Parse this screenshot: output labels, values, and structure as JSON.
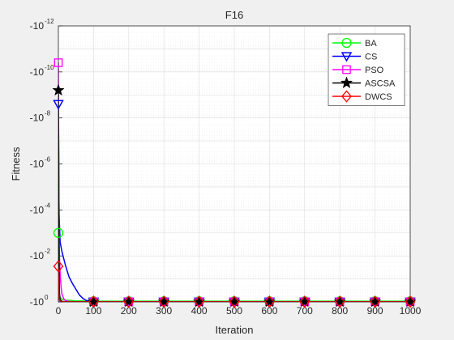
{
  "chart_data": {
    "type": "line",
    "title": "F16",
    "xlabel": "Iteration",
    "ylabel": "Fitness",
    "xlim": [
      0,
      1000
    ],
    "xticks": [
      0,
      100,
      200,
      300,
      400,
      500,
      600,
      700,
      800,
      900,
      1000
    ],
    "yscale": "log (negative values, axis reversed)",
    "ylim_log10_magnitude": [
      -12,
      0
    ],
    "yticks": [
      {
        "label": "-10",
        "exp": "-12"
      },
      {
        "label": "-10",
        "exp": "-10"
      },
      {
        "label": "-10",
        "exp": "-8"
      },
      {
        "label": "-10",
        "exp": "-6"
      },
      {
        "label": "-10",
        "exp": "-4"
      },
      {
        "label": "-10",
        "exp": "-2"
      },
      {
        "label": "-10",
        "exp": "0"
      }
    ],
    "grid": true,
    "legend": "top-right",
    "series": [
      {
        "name": "BA",
        "color": "#00ff00",
        "marker": "circle",
        "x": [
          0,
          1,
          2,
          3,
          5,
          10,
          20,
          50,
          100,
          200,
          300,
          400,
          500,
          600,
          700,
          800,
          900,
          1000
        ],
        "log10_magnitude": [
          -3.0,
          -1.2,
          -0.5,
          -0.3,
          -0.2,
          -0.12,
          -0.08,
          -0.05,
          -0.03,
          -0.03,
          -0.03,
          -0.03,
          -0.03,
          -0.03,
          -0.03,
          -0.03,
          -0.03,
          -0.03
        ]
      },
      {
        "name": "CS",
        "color": "#0000ff",
        "marker": "triangle-down",
        "x": [
          0,
          1,
          2,
          5,
          10,
          15,
          20,
          30,
          40,
          50,
          60,
          70,
          80,
          100,
          1000
        ],
        "log10_magnitude": [
          -8.6,
          -6.5,
          -3.8,
          -2.6,
          -2.2,
          -1.9,
          -1.6,
          -1.1,
          -0.8,
          -0.55,
          -0.3,
          -0.15,
          -0.06,
          -0.01,
          -0.01
        ]
      },
      {
        "name": "PSO",
        "color": "#ff00ff",
        "marker": "square",
        "x": [
          0,
          1,
          2,
          3,
          5,
          8,
          10,
          15,
          20,
          30,
          50,
          100,
          1000
        ],
        "log10_magnitude": [
          -10.4,
          -6.8,
          -3.5,
          -2.0,
          -1.2,
          -0.6,
          -0.35,
          -0.15,
          -0.06,
          -0.02,
          -0.01,
          -0.01,
          -0.01
        ]
      },
      {
        "name": "ASCSA",
        "color": "#000000",
        "marker": "star",
        "x": [
          0,
          1,
          2,
          3,
          5,
          10,
          20,
          100,
          1000
        ],
        "log10_magnitude": [
          -9.2,
          -5.0,
          -1.5,
          -0.4,
          -0.1,
          -0.02,
          -0.01,
          -0.01,
          -0.01
        ]
      },
      {
        "name": "DWCS",
        "color": "#ff0000",
        "marker": "diamond",
        "x": [
          0,
          1,
          2,
          3,
          5,
          10,
          20,
          100,
          1000
        ],
        "log10_magnitude": [
          -1.55,
          -0.5,
          -0.2,
          -0.08,
          -0.03,
          -0.01,
          -0.01,
          -0.01,
          -0.01
        ]
      }
    ],
    "marker_x": [
      0,
      100,
      200,
      300,
      400,
      500,
      600,
      700,
      800,
      900,
      1000
    ]
  }
}
